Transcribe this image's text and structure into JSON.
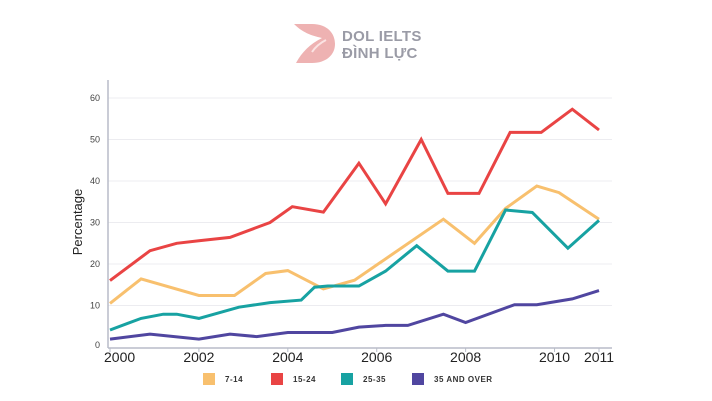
{
  "logo": {
    "line1": "DOL IELTS",
    "line2": "ĐÌNH LỰC"
  },
  "chart_data": {
    "type": "line",
    "xlabel": "",
    "ylabel": "Percentage",
    "xlim": [
      2000,
      2011
    ],
    "ylim": [
      0,
      60
    ],
    "x_ticks": [
      "2000",
      "2002",
      "2004",
      "2006",
      "2008",
      "2010",
      "2011"
    ],
    "y_ticks": [
      "0",
      "10",
      "20",
      "30",
      "40",
      "50",
      "60"
    ],
    "grid": true,
    "legend_position": "bottom",
    "series": [
      {
        "name": "7-14",
        "color": "#f8c06e",
        "points": [
          [
            2000,
            10.5
          ],
          [
            2000.7,
            16.4
          ],
          [
            2002,
            12.4
          ],
          [
            2002.8,
            12.4
          ],
          [
            2003.5,
            17.7
          ],
          [
            2004,
            18.4
          ],
          [
            2004.8,
            14
          ],
          [
            2005.5,
            16.1
          ],
          [
            2007.5,
            30.8
          ],
          [
            2008.2,
            25
          ],
          [
            2008.9,
            33.4
          ],
          [
            2009.6,
            38.8
          ],
          [
            2010.1,
            37.2
          ],
          [
            2011,
            30.8
          ]
        ]
      },
      {
        "name": "15-24",
        "color": "#e94444",
        "points": [
          [
            2000,
            16
          ],
          [
            2000.9,
            23.2
          ],
          [
            2001.5,
            25
          ],
          [
            2002,
            25.6
          ],
          [
            2002.7,
            26.4
          ],
          [
            2003.6,
            30
          ],
          [
            2004.1,
            33.8
          ],
          [
            2004.8,
            32.5
          ],
          [
            2005.6,
            44.3
          ],
          [
            2006.2,
            34.5
          ],
          [
            2007,
            50
          ],
          [
            2007.6,
            37
          ],
          [
            2008.3,
            37
          ],
          [
            2009,
            51.7
          ],
          [
            2009.7,
            51.7
          ],
          [
            2010.4,
            57.3
          ],
          [
            2011,
            52.3
          ]
        ]
      },
      {
        "name": "25-35",
        "color": "#17a2a2",
        "points": [
          [
            2000,
            4.1
          ],
          [
            2000.7,
            6.9
          ],
          [
            2001.2,
            7.9
          ],
          [
            2001.5,
            7.9
          ],
          [
            2002,
            6.9
          ],
          [
            2002.9,
            9.6
          ],
          [
            2003.6,
            10.7
          ],
          [
            2004.3,
            11.3
          ],
          [
            2004.6,
            14.4
          ],
          [
            2004.9,
            14.7
          ],
          [
            2005.6,
            14.7
          ],
          [
            2006.2,
            18.3
          ],
          [
            2006.9,
            24.4
          ],
          [
            2007.6,
            18.3
          ],
          [
            2008.2,
            18.3
          ],
          [
            2008.9,
            33
          ],
          [
            2009.5,
            32.4
          ],
          [
            2010.3,
            23.8
          ],
          [
            2011,
            30.5
          ]
        ]
      },
      {
        "name": "35 AND OVER",
        "color": "#5046a0",
        "points": [
          [
            2000,
            1.9
          ],
          [
            2000.9,
            3.1
          ],
          [
            2002,
            1.9
          ],
          [
            2002.7,
            3.1
          ],
          [
            2003.3,
            2.5
          ],
          [
            2004,
            3.5
          ],
          [
            2005,
            3.5
          ],
          [
            2005.6,
            4.8
          ],
          [
            2006.2,
            5.2
          ],
          [
            2006.7,
            5.2
          ],
          [
            2007.5,
            7.9
          ],
          [
            2008,
            5.9
          ],
          [
            2009.1,
            10.2
          ],
          [
            2009.6,
            10.2
          ],
          [
            2010.4,
            11.6
          ],
          [
            2011,
            13.6
          ]
        ]
      }
    ]
  }
}
